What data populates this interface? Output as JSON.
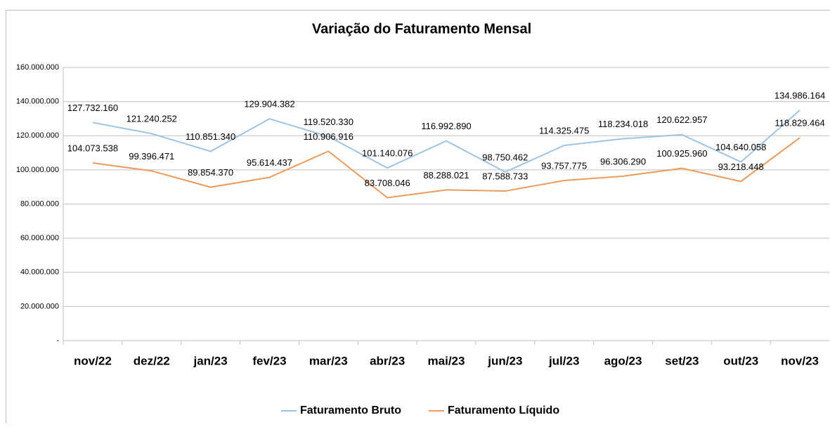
{
  "chart_data": {
    "type": "line",
    "title": "Variação do Faturamento Mensal",
    "categories": [
      "nov/22",
      "dez/22",
      "jan/23",
      "fev/23",
      "mar/23",
      "abr/23",
      "mai/23",
      "jun/23",
      "jul/23",
      "ago/23",
      "set/23",
      "out/23",
      "nov/23"
    ],
    "series": [
      {
        "name": "Faturamento Bruto",
        "color": "#9dc3e6",
        "values": [
          127732160,
          121240252,
          110851340,
          129904382,
          119520330,
          101140076,
          116992890,
          98750462,
          114325475,
          118234018,
          120622957,
          104640058,
          134986164
        ],
        "value_labels": [
          "127.732.160",
          "121.240.252",
          "110.851.340",
          "129.904.382",
          "119.520.330",
          "101.140.076",
          "116.992.890",
          "98.750.462",
          "114.325.475",
          "118.234.018",
          "120.622.957",
          "104.640.058",
          "134.986.164"
        ]
      },
      {
        "name": "Faturamento Líquido",
        "color": "#ed9a5a",
        "values": [
          104073538,
          99396471,
          89854370,
          95614437,
          110906916,
          83708046,
          88288021,
          87588733,
          93757775,
          96306290,
          100925960,
          93218448,
          118829464
        ],
        "value_labels": [
          "104.073.538",
          "99.396.471",
          "89.854.370",
          "95.614.437",
          "110.906.916",
          "83.708.046",
          "88.288.021",
          "87.588.733",
          "93.757.775",
          "96.306.290",
          "100.925.960",
          "93.218.448",
          "118.829.464"
        ]
      }
    ],
    "ylim": [
      0,
      160000000
    ],
    "yticks": [
      {
        "value": 0,
        "label": "-"
      },
      {
        "value": 20000000,
        "label": "20.000.000"
      },
      {
        "value": 40000000,
        "label": "40.000.000"
      },
      {
        "value": 60000000,
        "label": "60.000.000"
      },
      {
        "value": 80000000,
        "label": "80.000.000"
      },
      {
        "value": 100000000,
        "label": "100.000.000"
      },
      {
        "value": 120000000,
        "label": "120.000.000"
      },
      {
        "value": 140000000,
        "label": "140.000.000"
      },
      {
        "value": 160000000,
        "label": "160.000.000"
      }
    ],
    "grid": true,
    "legend": "bottom"
  }
}
